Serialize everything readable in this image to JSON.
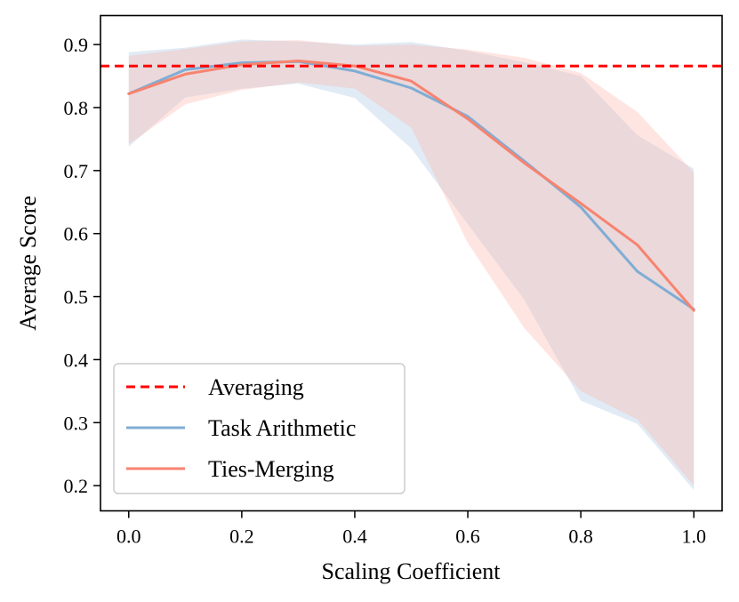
{
  "chart_data": {
    "type": "line",
    "title": "",
    "xlabel": "Scaling Coefficient",
    "ylabel": "Average Score",
    "xlim": [
      -0.05,
      1.05
    ],
    "ylim": [
      0.16,
      0.946
    ],
    "x_ticks": [
      0.0,
      0.2,
      0.4,
      0.6,
      0.8,
      1.0
    ],
    "x_tick_labels": [
      "0.0",
      "0.2",
      "0.4",
      "0.6",
      "0.8",
      "1.0"
    ],
    "y_ticks": [
      0.2,
      0.3,
      0.4,
      0.5,
      0.6,
      0.7,
      0.8,
      0.9
    ],
    "y_tick_labels": [
      "0.2",
      "0.3",
      "0.4",
      "0.5",
      "0.6",
      "0.7",
      "0.8",
      "0.9"
    ],
    "grid": false,
    "legend_position": "lower-left",
    "baseline": {
      "name": "Averaging",
      "value": 0.866,
      "color": "#ff0000",
      "style": "dashed"
    },
    "x": [
      0.0,
      0.1,
      0.2,
      0.3,
      0.4,
      0.5,
      0.6,
      0.7,
      0.8,
      0.9,
      1.0
    ],
    "series": [
      {
        "name": "Task Arithmetic",
        "color": "#7fadd4",
        "fill_color": "#a9c6e3",
        "values": [
          0.822,
          0.86,
          0.871,
          0.873,
          0.858,
          0.831,
          0.786,
          0.715,
          0.642,
          0.54,
          0.48
        ],
        "lower": [
          0.738,
          0.816,
          0.83,
          0.838,
          0.815,
          0.735,
          0.615,
          0.495,
          0.335,
          0.298,
          0.193
        ],
        "upper": [
          0.888,
          0.895,
          0.908,
          0.905,
          0.9,
          0.904,
          0.89,
          0.872,
          0.85,
          0.756,
          0.703
        ]
      },
      {
        "name": "Ties-Merging",
        "color": "#f7836f",
        "fill_color": "#fbb4ab",
        "values": [
          0.822,
          0.853,
          0.868,
          0.874,
          0.866,
          0.842,
          0.782,
          0.712,
          0.648,
          0.582,
          0.478
        ],
        "lower": [
          0.742,
          0.805,
          0.828,
          0.84,
          0.83,
          0.768,
          0.585,
          0.45,
          0.35,
          0.305,
          0.2
        ],
        "upper": [
          0.882,
          0.893,
          0.905,
          0.907,
          0.898,
          0.9,
          0.892,
          0.879,
          0.855,
          0.793,
          0.697
        ]
      }
    ]
  }
}
